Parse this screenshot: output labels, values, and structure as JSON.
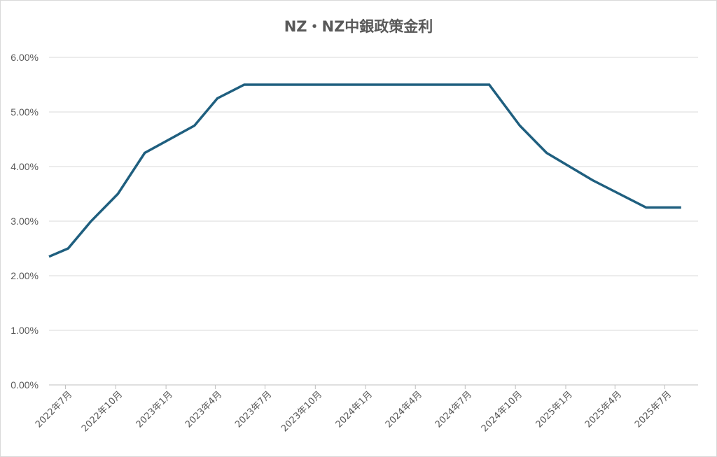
{
  "chart_data": {
    "type": "line",
    "title": "NZ・NZ中銀政策金利",
    "xlabel": "",
    "ylabel": "",
    "ylim": [
      0,
      6
    ],
    "yticks": [
      0,
      1,
      2,
      3,
      4,
      5,
      6
    ],
    "ytick_labels": [
      "0.00%",
      "1.00%",
      "2.00%",
      "3.00%",
      "4.00%",
      "5.00%",
      "6.00%"
    ],
    "xlim": [
      "2022-06-01",
      "2025-08-31"
    ],
    "xticks": [
      "2022-07-01",
      "2022-10-01",
      "2023-01-01",
      "2023-04-01",
      "2023-07-01",
      "2023-10-01",
      "2024-01-01",
      "2024-04-01",
      "2024-07-01",
      "2024-10-01",
      "2025-01-01",
      "2025-04-01",
      "2025-07-01"
    ],
    "xtick_labels": [
      "2022年7月",
      "2022年10月",
      "2023年1月",
      "2023年4月",
      "2023年7月",
      "2023年10月",
      "2024年1月",
      "2024年4月",
      "2024年7月",
      "2024年10月",
      "2025年1月",
      "2025年4月",
      "2025年7月"
    ],
    "grid": true,
    "series": [
      {
        "color": "#1f5f7f",
        "points": [
          [
            "2022-06-01",
            2.35
          ],
          [
            "2022-07-06",
            2.5
          ],
          [
            "2022-08-17",
            3.0
          ],
          [
            "2022-10-05",
            3.5
          ],
          [
            "2022-11-23",
            4.25
          ],
          [
            "2023-02-22",
            4.75
          ],
          [
            "2023-04-05",
            5.25
          ],
          [
            "2023-05-24",
            5.5
          ],
          [
            "2024-08-14",
            5.5
          ],
          [
            "2024-10-09",
            4.75
          ],
          [
            "2024-11-27",
            4.25
          ],
          [
            "2025-02-19",
            3.75
          ],
          [
            "2025-04-09",
            3.5
          ],
          [
            "2025-05-28",
            3.25
          ],
          [
            "2025-07-09",
            3.25
          ],
          [
            "2025-07-31",
            3.25
          ]
        ]
      }
    ]
  }
}
